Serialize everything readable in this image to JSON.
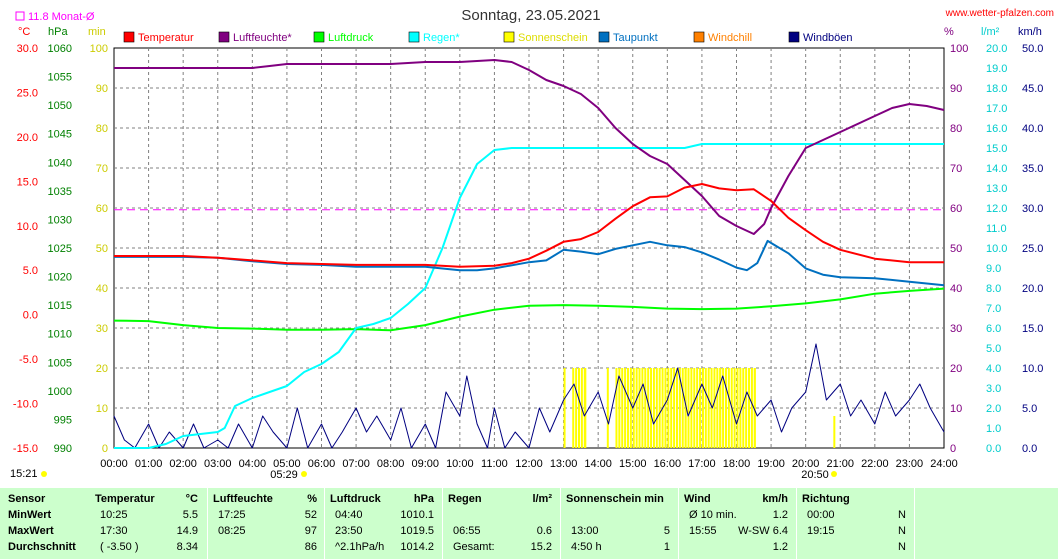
{
  "header": {
    "title": "Sonntag, 23.05.2021",
    "site": "www.wetter-pfalzen.com",
    "month_avg": "11.8 Monat-Ø",
    "unit_left": [
      "°C",
      "hPa",
      "min"
    ],
    "unit_right": [
      "%",
      "l/m²",
      "km/h"
    ]
  },
  "time_marks": {
    "now": "15:21",
    "sunrise": "05:29",
    "sunset": "20:50"
  },
  "colors": {
    "temperature": "#ff0000",
    "humidity": "#800080",
    "pressure": "#00ff00",
    "rain": "#00ffff",
    "sunshine": "#ffff00",
    "dewpoint": "#0070c0",
    "windchill": "#ff8000",
    "gusts": "#000080",
    "grid": "#808080",
    "stats_bg": "#ccffcc"
  },
  "chart_data": {
    "type": "line",
    "title": "Sonntag, 23.05.2021",
    "x_ticks": [
      "00:00",
      "01:00",
      "02:00",
      "03:00",
      "04:00",
      "05:00",
      "06:00",
      "07:00",
      "08:00",
      "09:00",
      "10:00",
      "11:00",
      "12:00",
      "13:00",
      "14:00",
      "15:00",
      "16:00",
      "17:00",
      "18:00",
      "19:00",
      "20:00",
      "21:00",
      "22:00",
      "23:00",
      "24:00"
    ],
    "axes": {
      "temperature_c": {
        "range": [
          -15,
          30
        ],
        "ticks": [
          "30.0",
          "25.0",
          "20.0",
          "15.0",
          "10.0",
          "5.0",
          "0.0",
          "-5.0",
          "-10.0",
          "-15.0"
        ]
      },
      "pressure_hpa": {
        "range": [
          990,
          1060
        ],
        "ticks": [
          "1060",
          "1055",
          "1050",
          "1045",
          "1040",
          "1035",
          "1030",
          "1025",
          "1020",
          "1015",
          "1010",
          "1005",
          "1000",
          "995",
          "990"
        ]
      },
      "sunshine_min": {
        "range": [
          0,
          100
        ],
        "ticks": [
          "100",
          "90",
          "80",
          "70",
          "60",
          "50",
          "40",
          "30",
          "20",
          "10",
          "0"
        ]
      },
      "humidity_pct": {
        "range": [
          0,
          100
        ],
        "ticks": [
          "100",
          "90",
          "80",
          "70",
          "60",
          "50",
          "40",
          "30",
          "20",
          "10",
          "0"
        ]
      },
      "rain_lm2": {
        "range": [
          0,
          20
        ],
        "ticks": [
          "20.0",
          "19.0",
          "18.0",
          "17.0",
          "16.0",
          "15.0",
          "14.0",
          "13.0",
          "12.0",
          "11.0",
          "10.0",
          "9.0",
          "8.0",
          "7.0",
          "6.0",
          "5.0",
          "4.0",
          "3.0",
          "2.0",
          "1.0",
          "0.0"
        ]
      },
      "wind_kmh": {
        "range": [
          0,
          50
        ],
        "ticks": [
          "50.0",
          "45.0",
          "40.0",
          "35.0",
          "30.0",
          "25.0",
          "20.0",
          "15.0",
          "10.0",
          "5.0",
          "0.0"
        ]
      }
    },
    "reference_line": {
      "name": "Monat-Ø",
      "value": 11.8,
      "unit": "°C"
    },
    "series": [
      {
        "name": "Temperatur",
        "unit": "°C",
        "color": "#ff0000",
        "x": [
          0,
          1,
          2,
          3,
          4,
          5,
          6,
          7,
          8,
          9,
          10,
          11,
          11.5,
          12,
          12.5,
          13,
          13.5,
          14,
          14.5,
          15,
          15.5,
          16,
          16.5,
          17,
          17.5,
          18,
          18.5,
          19,
          19.5,
          20,
          20.5,
          21,
          22,
          23,
          24
        ],
        "y": [
          6.6,
          6.6,
          6.6,
          6.4,
          6.1,
          5.8,
          5.7,
          5.6,
          5.6,
          5.6,
          5.4,
          5.5,
          5.8,
          6.3,
          7.2,
          8.2,
          8.5,
          9.3,
          10.8,
          12.2,
          13.2,
          13.3,
          14.3,
          14.7,
          14.2,
          14.0,
          14.1,
          12.8,
          10.9,
          9.5,
          8.2,
          7.3,
          6.3,
          5.9,
          5.9
        ]
      },
      {
        "name": "Luftfeuchte*",
        "unit": "%",
        "color": "#800080",
        "x": [
          0,
          1,
          2,
          3,
          4,
          4.5,
          5,
          6,
          7,
          8,
          9,
          10,
          11,
          11.5,
          12,
          12.5,
          13,
          13.5,
          14,
          14.5,
          15,
          15.5,
          16,
          16.5,
          17,
          17.5,
          18,
          18.5,
          18.8,
          19,
          19.5,
          20,
          21,
          22,
          22.5,
          23,
          23.5,
          24
        ],
        "y": [
          95,
          95,
          95,
          95,
          95,
          95.5,
          96,
          96,
          96,
          96,
          96.5,
          96.5,
          97,
          96.5,
          94.5,
          92,
          90.5,
          88.5,
          85,
          80,
          76,
          73,
          71,
          67,
          63,
          58,
          55.5,
          53.5,
          56,
          60,
          68,
          75,
          79,
          83,
          85,
          86,
          85.5,
          84.5
        ]
      },
      {
        "name": "Luftdruck",
        "unit": "hPa",
        "color": "#00ff00",
        "x": [
          0,
          1,
          2,
          3,
          4,
          5,
          6,
          7,
          8,
          9,
          10,
          11,
          12,
          13,
          14,
          15,
          16,
          17,
          18,
          19,
          20,
          21,
          22,
          23,
          24
        ],
        "y": [
          1012.3,
          1012.2,
          1011.5,
          1011.0,
          1010.9,
          1010.7,
          1010.7,
          1010.8,
          1010.6,
          1011.5,
          1013.0,
          1014.2,
          1014.9,
          1015.0,
          1014.9,
          1014.7,
          1014.4,
          1014.3,
          1014.4,
          1014.8,
          1015.3,
          1016.0,
          1017.0,
          1017.5,
          1017.9
        ]
      },
      {
        "name": "Regen*",
        "unit": "l/m²",
        "color": "#00ffff",
        "x": [
          0,
          1,
          1.5,
          2,
          2.5,
          3,
          3.2,
          3.5,
          4,
          4.5,
          5,
          5.5,
          6,
          6.5,
          7,
          7.5,
          8,
          8.5,
          9,
          9.5,
          10,
          10.5,
          11,
          11.5,
          12,
          13,
          14,
          15,
          16,
          16.5,
          17,
          18,
          19,
          20,
          21,
          22,
          23,
          24
        ],
        "y": [
          0,
          0,
          0.2,
          0.6,
          0.7,
          0.8,
          1.0,
          2.1,
          2.5,
          2.8,
          3.1,
          3.8,
          4.2,
          4.8,
          6.0,
          6.2,
          6.5,
          7.2,
          8.0,
          10.0,
          12.5,
          14.2,
          14.9,
          15.0,
          15.0,
          15.0,
          15.0,
          15.0,
          15.0,
          15.0,
          15.2,
          15.2,
          15.2,
          15.2,
          15.2,
          15.2,
          15.2,
          15.2
        ]
      },
      {
        "name": "Sonnenschein",
        "unit": "min",
        "color": "#ffff00",
        "x": [
          13.0,
          13.25,
          13.6,
          14.25,
          14.5,
          15,
          15.5,
          16,
          16.5,
          17,
          17.5,
          18,
          18.5,
          20.8
        ],
        "y": [
          5,
          5,
          5,
          5,
          5,
          5,
          5,
          5,
          5,
          5,
          5,
          5,
          5,
          2
        ]
      },
      {
        "name": "Taupunkt",
        "unit": "°C",
        "color": "#0070c0",
        "x": [
          0,
          1,
          2,
          3,
          4,
          5,
          6,
          7,
          8,
          9,
          10,
          10.5,
          11,
          12,
          12.5,
          13,
          13.5,
          14,
          14.5,
          15,
          15.5,
          16,
          16.5,
          17,
          17.5,
          18,
          18.3,
          18.6,
          18.9,
          19.2,
          19.5,
          20,
          20.5,
          21,
          22,
          23,
          24
        ],
        "y": [
          6.5,
          6.5,
          6.5,
          6.4,
          6.0,
          5.7,
          5.6,
          5.4,
          5.4,
          5.4,
          5.0,
          5.0,
          5.2,
          5.9,
          6.1,
          7.3,
          7.1,
          6.8,
          7.4,
          7.8,
          8.2,
          7.8,
          7.6,
          7.0,
          6.2,
          5.3,
          5.0,
          5.8,
          8.3,
          7.6,
          6.9,
          5.2,
          4.5,
          4.2,
          4.1,
          3.7,
          3.3
        ]
      },
      {
        "name": "Windchill",
        "unit": "°C",
        "color": "#ff8000",
        "x": [],
        "y": []
      },
      {
        "name": "Windböen",
        "unit": "km/h",
        "color": "#000080",
        "x": [
          0,
          0.3,
          0.6,
          1,
          1.3,
          1.6,
          2,
          2.3,
          2.6,
          3,
          3.3,
          3.6,
          4,
          4.3,
          4.6,
          5,
          5.3,
          5.6,
          6,
          6.3,
          6.6,
          7,
          7.3,
          7.6,
          8,
          8.3,
          8.6,
          9,
          9.3,
          9.6,
          10,
          10.2,
          10.5,
          10.8,
          11,
          11.3,
          11.6,
          12,
          12.3,
          12.6,
          13,
          13.3,
          13.6,
          14,
          14.3,
          14.6,
          15,
          15.3,
          15.6,
          16,
          16.3,
          16.6,
          17,
          17.3,
          17.6,
          18,
          18.3,
          18.6,
          19,
          19.3,
          19.6,
          20,
          20.3,
          20.6,
          21,
          21.3,
          21.6,
          22,
          22.3,
          22.6,
          23,
          23.3,
          23.6,
          24
        ],
        "y": [
          4,
          1,
          0,
          3,
          0,
          2,
          0,
          3,
          0,
          1,
          0,
          3,
          0,
          4,
          2,
          0,
          5,
          0,
          3,
          0,
          2,
          5,
          2,
          4,
          1,
          5,
          0,
          3,
          0,
          7,
          4,
          9,
          3,
          0,
          5,
          0,
          2,
          0,
          5,
          2,
          6,
          8,
          4,
          7,
          3,
          9,
          5,
          8,
          3,
          6,
          10,
          4,
          8,
          5,
          9,
          3,
          7,
          4,
          6,
          2,
          5,
          7,
          13,
          6,
          8,
          4,
          6,
          3,
          7,
          4,
          6,
          8,
          5,
          2
        ]
      }
    ]
  },
  "stats": {
    "headers": [
      {
        "label": "Sensor",
        "unit": ""
      },
      {
        "label": "Temperatur",
        "unit": "°C"
      },
      {
        "label": "Luftfeuchte",
        "unit": "%"
      },
      {
        "label": "Luftdruck",
        "unit": "hPa"
      },
      {
        "label": "Regen",
        "unit": "l/m²"
      },
      {
        "label": "Sonnenschein min",
        "unit": ""
      },
      {
        "label": "Wind",
        "unit": "km/h"
      },
      {
        "label": "Richtung",
        "unit": ""
      }
    ],
    "rows": [
      {
        "label": "MinWert",
        "temp_time": "10:25",
        "temp_val": "5.5",
        "hum_time": "17:25",
        "hum_val": "52",
        "press_time": "04:40",
        "press_val": "1010.1",
        "rain_time": "",
        "rain_val": "",
        "sun_time": "",
        "sun_val": "",
        "wind_time": "Ø 10 min.",
        "wind_val": "1.2",
        "dir_time": "00:00",
        "dir_val": "N"
      },
      {
        "label": "MaxWert",
        "temp_time": "17:30",
        "temp_val": "14.9",
        "hum_time": "08:25",
        "hum_val": "97",
        "press_time": "23:50",
        "press_val": "1019.5",
        "rain_time": "06:55",
        "rain_val": "0.6",
        "sun_time": "13:00",
        "sun_val": "5",
        "wind_time": "15:55",
        "wind_val": "W-SW 6.4",
        "dir_time": "19:15",
        "dir_val": "N"
      },
      {
        "label": "Durchschnitt",
        "temp_time": "( -3.50 )",
        "temp_val": "8.34",
        "hum_time": "",
        "hum_val": "86",
        "press_time": "^2.1hPa/h",
        "press_val": "1014.2",
        "rain_time": "Gesamt:",
        "rain_val": "15.2",
        "sun_time": "4:50 h",
        "sun_val": "1",
        "wind_time": "",
        "wind_val": "1.2",
        "dir_time": "",
        "dir_val": "N"
      }
    ]
  }
}
